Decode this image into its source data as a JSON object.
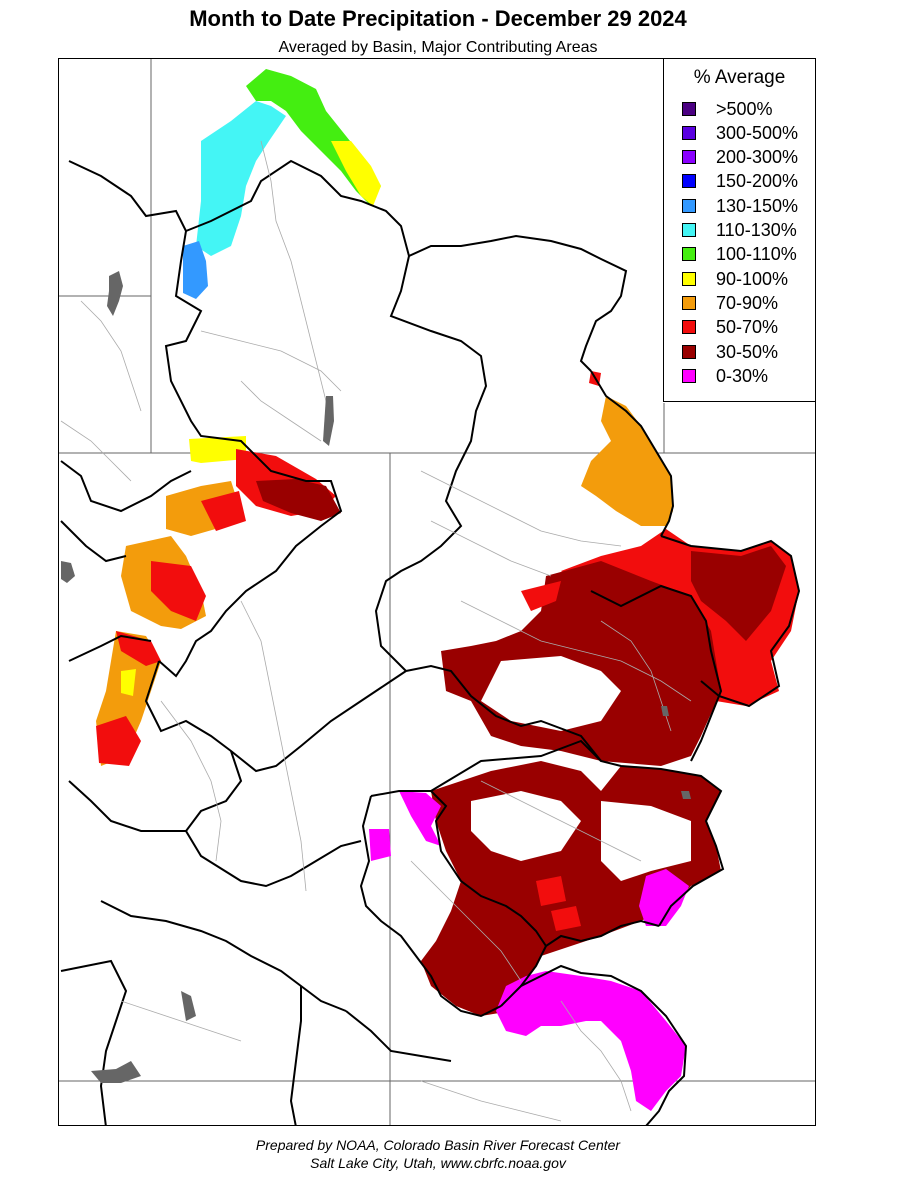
{
  "title": "Month to Date Precipitation - December 29 2024",
  "subtitle": "Averaged by Basin, Major Contributing Areas",
  "legend": {
    "title": "% Average",
    "items": [
      {
        "label": ">500%",
        "color": "#4b0082"
      },
      {
        "label": "300-500%",
        "color": "#5a00e0"
      },
      {
        "label": "200-300%",
        "color": "#8a00ff"
      },
      {
        "label": "150-200%",
        "color": "#0000ff"
      },
      {
        "label": "130-150%",
        "color": "#3399ff"
      },
      {
        "label": "110-130%",
        "color": "#44f5f5"
      },
      {
        "label": "100-110%",
        "color": "#44ee11"
      },
      {
        "label": "90-100%",
        "color": "#ffff00"
      },
      {
        "label": "70-90%",
        "color": "#f39c0c"
      },
      {
        "label": "50-70%",
        "color": "#f20d0d"
      },
      {
        "label": "30-50%",
        "color": "#990000"
      },
      {
        "label": "0-30%",
        "color": "#ff00ff"
      }
    ]
  },
  "footer": {
    "line1": "Prepared by NOAA, Colorado Basin River Forecast Center",
    "line2": "Salt Lake City, Utah, www.cbrfc.noaa.gov"
  }
}
